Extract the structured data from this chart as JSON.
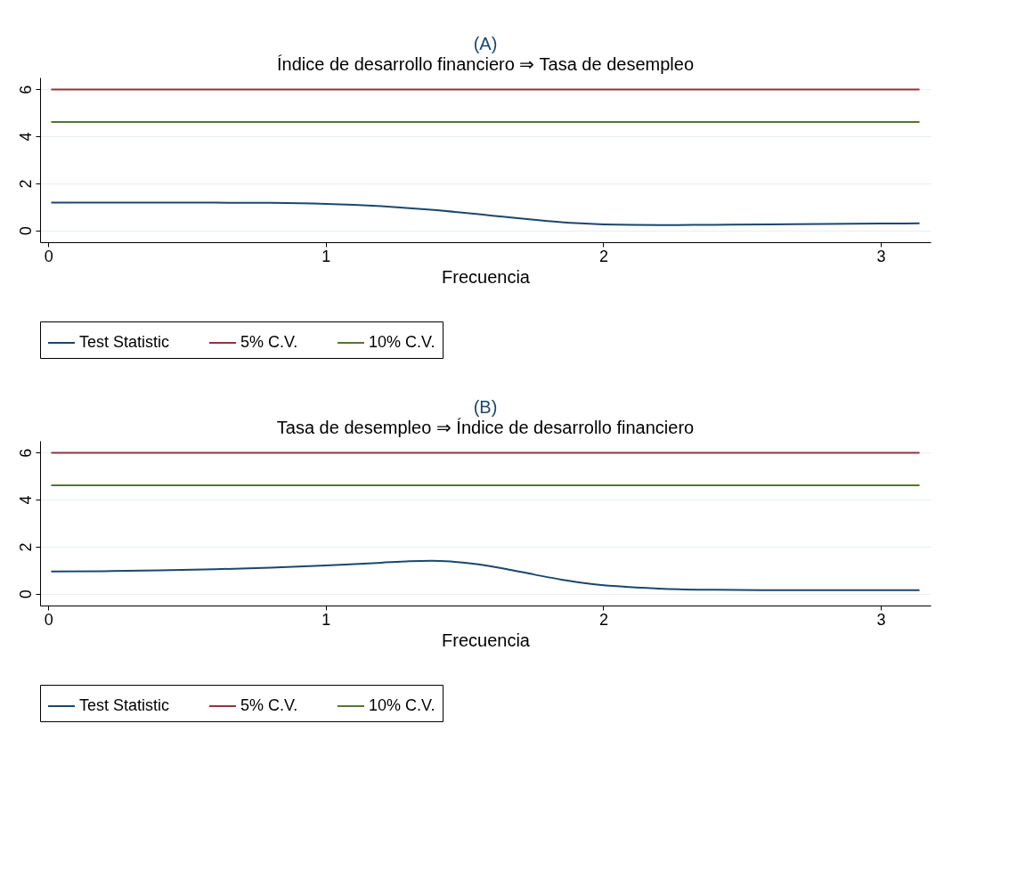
{
  "chart_data": [
    {
      "type": "line",
      "title": "(A)",
      "subtitle": "Índice de desarrollo financiero ⇒ Tasa de desempleo",
      "xlabel": "Frecuencia",
      "xlim": [
        -0.03,
        3.18
      ],
      "xticks": [
        0,
        1,
        2,
        3
      ],
      "ylim": [
        -0.5,
        6.5
      ],
      "yticks": [
        0,
        2,
        4,
        6
      ],
      "grid": "y",
      "legend": "bottom",
      "series": [
        {
          "name": "Test Statistic",
          "color": "#1a476f",
          "x": [
            0.01,
            0.3,
            0.6,
            0.8,
            1.0,
            1.1,
            1.2,
            1.3,
            1.4,
            1.5,
            1.6,
            1.7,
            1.8,
            1.9,
            2.0,
            2.2,
            2.4,
            2.6,
            2.8,
            3.0,
            3.14
          ],
          "values": [
            1.18,
            1.18,
            1.18,
            1.17,
            1.13,
            1.09,
            1.03,
            0.95,
            0.86,
            0.75,
            0.63,
            0.51,
            0.4,
            0.31,
            0.26,
            0.23,
            0.24,
            0.26,
            0.28,
            0.29,
            0.3
          ]
        },
        {
          "name": "5% C.V.",
          "color": "#90353b",
          "x": [
            0.01,
            3.14
          ],
          "values": [
            5.99,
            5.99
          ]
        },
        {
          "name": "10% C.V.",
          "color": "#55752f",
          "x": [
            0.01,
            3.14
          ],
          "values": [
            4.61,
            4.61
          ]
        }
      ]
    },
    {
      "type": "line",
      "title": "(B)",
      "subtitle": "Tasa de desempleo ⇒ Índice de desarrollo financiero",
      "xlabel": "Frecuencia",
      "xlim": [
        -0.03,
        3.18
      ],
      "xticks": [
        0,
        1,
        2,
        3
      ],
      "ylim": [
        -0.5,
        6.5
      ],
      "yticks": [
        0,
        2,
        4,
        6
      ],
      "grid": "y",
      "legend": "bottom",
      "series": [
        {
          "name": "Test Statistic",
          "color": "#1a476f",
          "x": [
            0.01,
            0.2,
            0.4,
            0.6,
            0.8,
            1.0,
            1.2,
            1.3,
            1.38,
            1.45,
            1.55,
            1.65,
            1.75,
            1.85,
            1.95,
            2.05,
            2.2,
            2.4,
            2.6,
            2.8,
            3.0,
            3.14
          ],
          "values": [
            0.95,
            0.96,
            0.99,
            1.04,
            1.11,
            1.2,
            1.32,
            1.38,
            1.4,
            1.37,
            1.25,
            1.05,
            0.82,
            0.6,
            0.43,
            0.32,
            0.22,
            0.17,
            0.15,
            0.15,
            0.15,
            0.15
          ]
        },
        {
          "name": "5% C.V.",
          "color": "#90353b",
          "x": [
            0.01,
            3.14
          ],
          "values": [
            5.99,
            5.99
          ]
        },
        {
          "name": "10% C.V.",
          "color": "#55752f",
          "x": [
            0.01,
            3.14
          ],
          "values": [
            4.61,
            4.61
          ]
        }
      ]
    }
  ]
}
